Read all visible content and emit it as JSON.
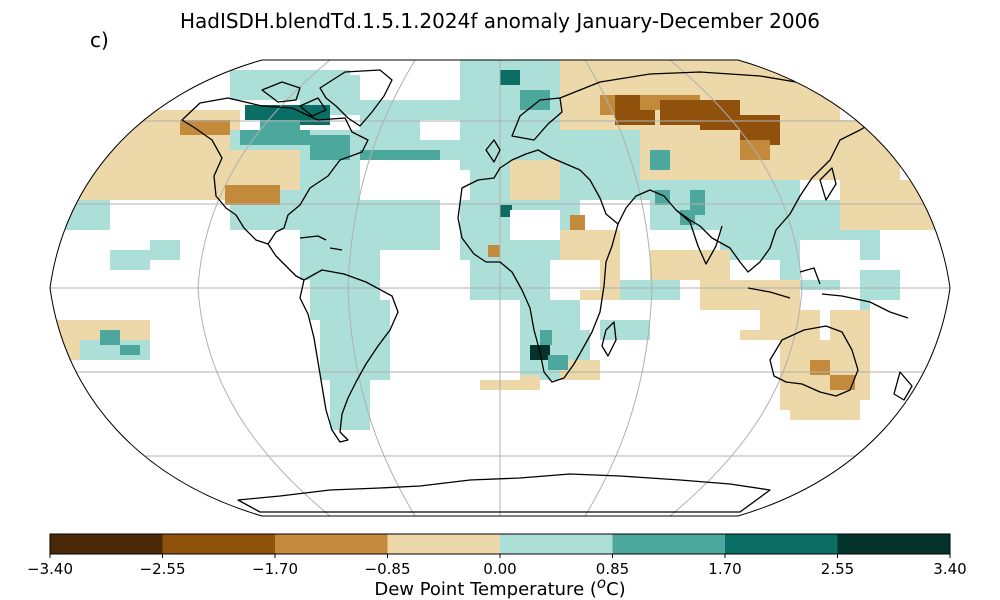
{
  "title": "HadISDH.blendTd.1.5.1.2024f anomaly January-December 2006",
  "panel_label": "c)",
  "colorbar": {
    "label_prefix": "Dew Point Temperature (",
    "label_sup": "o",
    "label_suffix": "C)",
    "ticks": [
      "−3.40",
      "−2.55",
      "−1.70",
      "−0.85",
      "0.00",
      "0.85",
      "1.70",
      "2.55",
      "3.40"
    ],
    "colors": [
      "#4a2a06",
      "#8f510c",
      "#c38a3c",
      "#ecd8a8",
      "#abdfd8",
      "#4ca89c",
      "#0a6e64",
      "#04332b"
    ]
  },
  "map": {
    "projection": "Robinson",
    "grid_color": "#b0b0b0",
    "coast_color": "#000000",
    "no_data_color": "#ffffff"
  }
}
